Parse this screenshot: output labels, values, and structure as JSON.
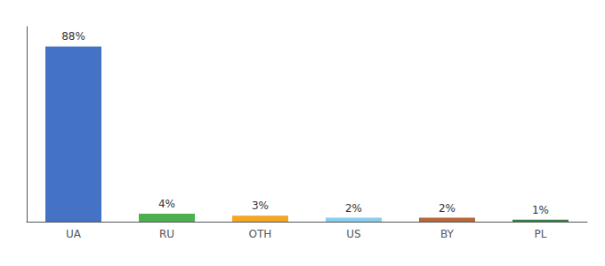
{
  "chart_data": {
    "type": "bar",
    "categories": [
      "UA",
      "RU",
      "OTH",
      "US",
      "BY",
      "PL"
    ],
    "values": [
      88,
      4,
      3,
      2,
      2,
      1
    ],
    "value_labels": [
      "88%",
      "4%",
      "3%",
      "2%",
      "2%",
      "1%"
    ],
    "data_labels": true,
    "colors": [
      "#4472c4",
      "#4caf50",
      "#f5a623",
      "#87ceeb",
      "#b8673a",
      "#3a7d44"
    ],
    "ylim": [
      0,
      98
    ],
    "tick_labels": "x",
    "grid": false
  }
}
